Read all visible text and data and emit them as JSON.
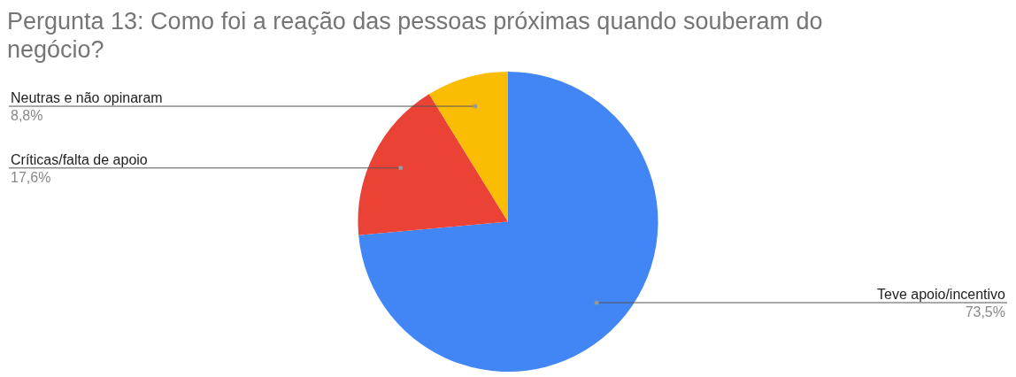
{
  "chart_data": {
    "type": "pie",
    "title": "Pergunta 13: Como foi a reação das pessoas próximas quando souberam do negócio?",
    "categories": [
      "Teve apoio/incentivo",
      "Críticas/falta de apoio",
      "Neutras e não opinaram"
    ],
    "values": [
      73.5,
      17.6,
      8.8
    ],
    "colors": [
      "#4285f4",
      "#ea4335",
      "#fbbc04"
    ],
    "value_labels": [
      "73,5%",
      "17,6%",
      "8,8%"
    ],
    "legend": false
  }
}
